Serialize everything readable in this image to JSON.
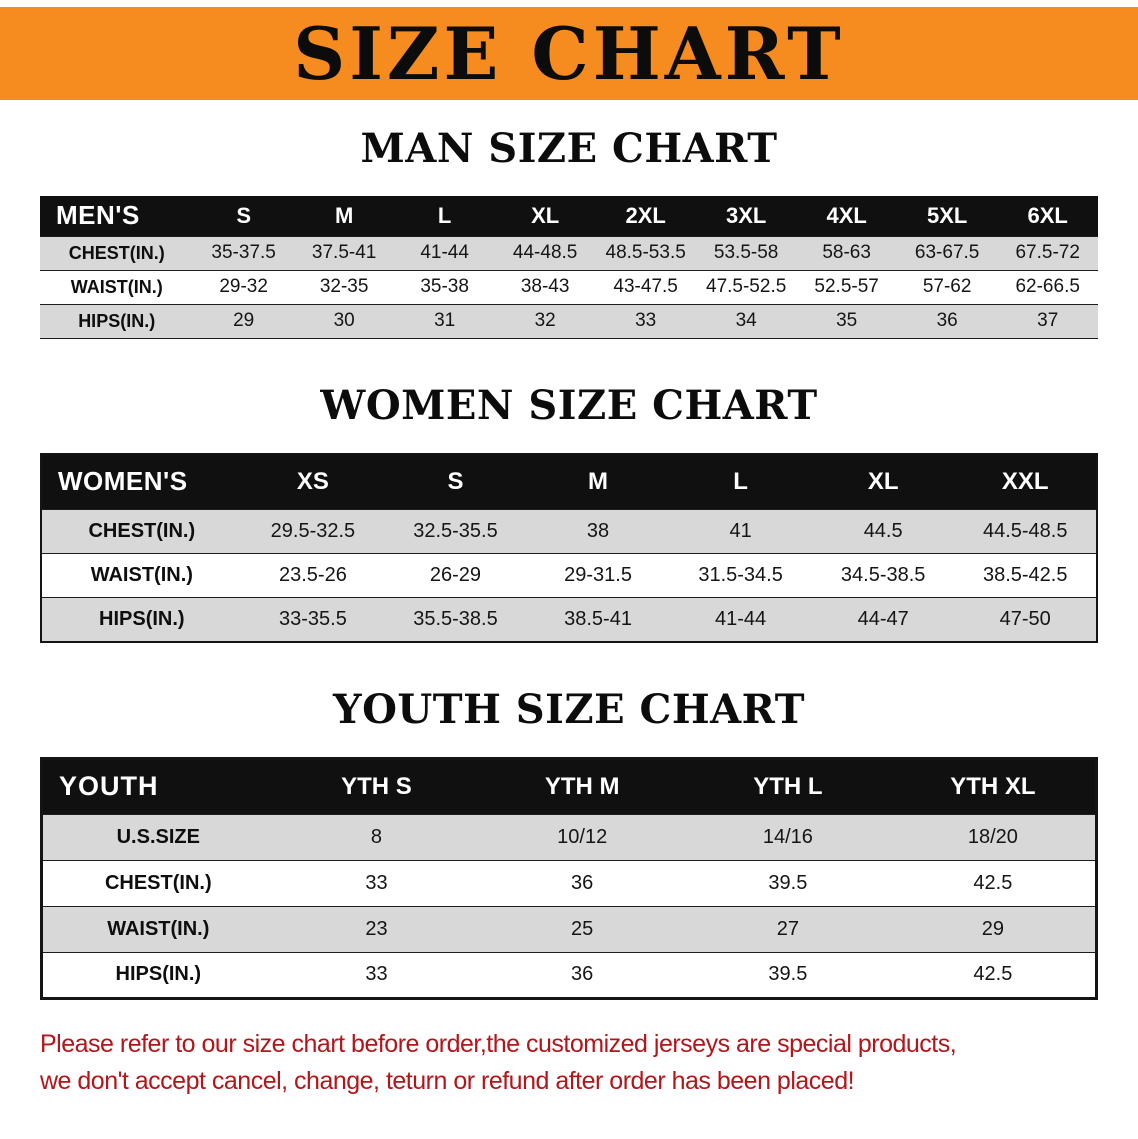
{
  "banner": {
    "title": "SIZE CHART"
  },
  "theme": {
    "banner_orange": "#f68b1f",
    "table_header_black": "#101010",
    "row_stripe_gray": "#d8d8d8",
    "notice_red": "#b3151a"
  },
  "sections": [
    {
      "key": "men",
      "heading": "MAN SIZE CHART",
      "header": [
        "MEN'S",
        "S",
        "M",
        "L",
        "XL",
        "2XL",
        "3XL",
        "4XL",
        "5XL",
        "6XL"
      ],
      "rows": [
        [
          "CHEST(IN.)",
          "35-37.5",
          "37.5-41",
          "41-44",
          "44-48.5",
          "48.5-53.5",
          "53.5-58",
          "58-63",
          "63-67.5",
          "67.5-72"
        ],
        [
          "WAIST(IN.)",
          "29-32",
          "32-35",
          "35-38",
          "38-43",
          "43-47.5",
          "47.5-52.5",
          "52.5-57",
          "57-62",
          "62-66.5"
        ],
        [
          "HIPS(IN.)",
          "29",
          "30",
          "31",
          "32",
          "33",
          "34",
          "35",
          "36",
          "37"
        ]
      ]
    },
    {
      "key": "women",
      "heading": "WOMEN SIZE CHART",
      "header": [
        "WOMEN'S",
        "XS",
        "S",
        "M",
        "L",
        "XL",
        "XXL"
      ],
      "rows": [
        [
          "CHEST(IN.)",
          "29.5-32.5",
          "32.5-35.5",
          "38",
          "41",
          "44.5",
          "44.5-48.5"
        ],
        [
          "WAIST(IN.)",
          "23.5-26",
          "26-29",
          "29-31.5",
          "31.5-34.5",
          "34.5-38.5",
          "38.5-42.5"
        ],
        [
          "HIPS(IN.)",
          "33-35.5",
          "35.5-38.5",
          "38.5-41",
          "41-44",
          "44-47",
          "47-50"
        ]
      ]
    },
    {
      "key": "youth",
      "heading": "YOUTH SIZE CHART",
      "header": [
        "YOUTH",
        "YTH S",
        "YTH M",
        "YTH L",
        "YTH XL"
      ],
      "rows": [
        [
          "U.S.SIZE",
          "8",
          "10/12",
          "14/16",
          "18/20"
        ],
        [
          "CHEST(IN.)",
          "33",
          "36",
          "39.5",
          "42.5"
        ],
        [
          "WAIST(IN.)",
          "23",
          "25",
          "27",
          "29"
        ],
        [
          "HIPS(IN.)",
          "33",
          "36",
          "39.5",
          "42.5"
        ]
      ]
    }
  ],
  "notice": {
    "line1": "Please refer to our size chart before order,the customized jerseys are special products,",
    "line2": "we don't accept cancel, change, teturn or refund after order has been placed!"
  }
}
